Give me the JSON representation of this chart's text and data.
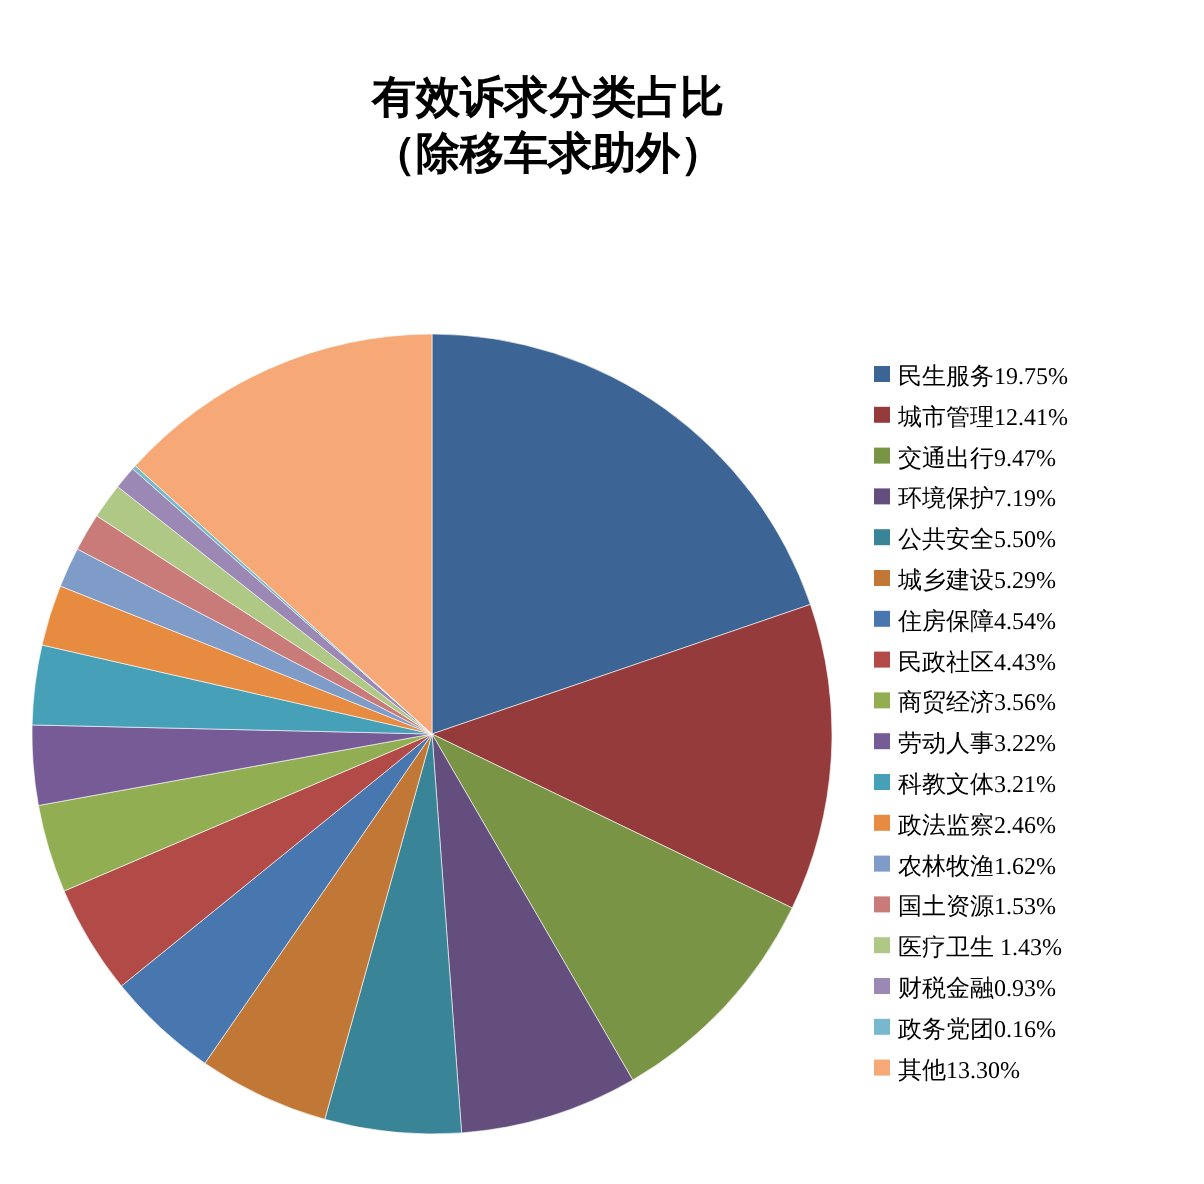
{
  "chart_data": {
    "type": "pie",
    "title": "有效诉求分类占比",
    "subtitle": "（除移车求助外）",
    "categories": [
      "民生服务19.75%",
      "城市管理12.41%",
      "交通出行9.47%",
      "环境保护7.19%",
      "公共安全5.50%",
      "城乡建设5.29%",
      "住房保障4.54%",
      "民政社区4.43%",
      "商贸经济3.56%",
      "劳动人事3.22%",
      "科教文体3.21%",
      "政法监察2.46%",
      "农林牧渔1.62%",
      "国土资源1.53%",
      "医疗卫生 1.43%",
      "财税金融0.93%",
      "政务党团0.16%",
      "其他13.30%"
    ],
    "values": [
      19.75,
      12.41,
      9.47,
      7.19,
      5.5,
      5.29,
      4.54,
      4.43,
      3.56,
      3.22,
      3.21,
      2.46,
      1.62,
      1.53,
      1.43,
      0.93,
      0.16,
      13.3
    ],
    "colors": [
      "#3c6494",
      "#953b3b",
      "#7a9446",
      "#634e7e",
      "#398496",
      "#c17735",
      "#4876ae",
      "#b24b48",
      "#92ae53",
      "#775b96",
      "#46a0b8",
      "#e68b3f",
      "#7f9bc8",
      "#c97b7a",
      "#afc886",
      "#9b88b5",
      "#78b8cc",
      "#f6a977"
    ],
    "legend": "right"
  }
}
